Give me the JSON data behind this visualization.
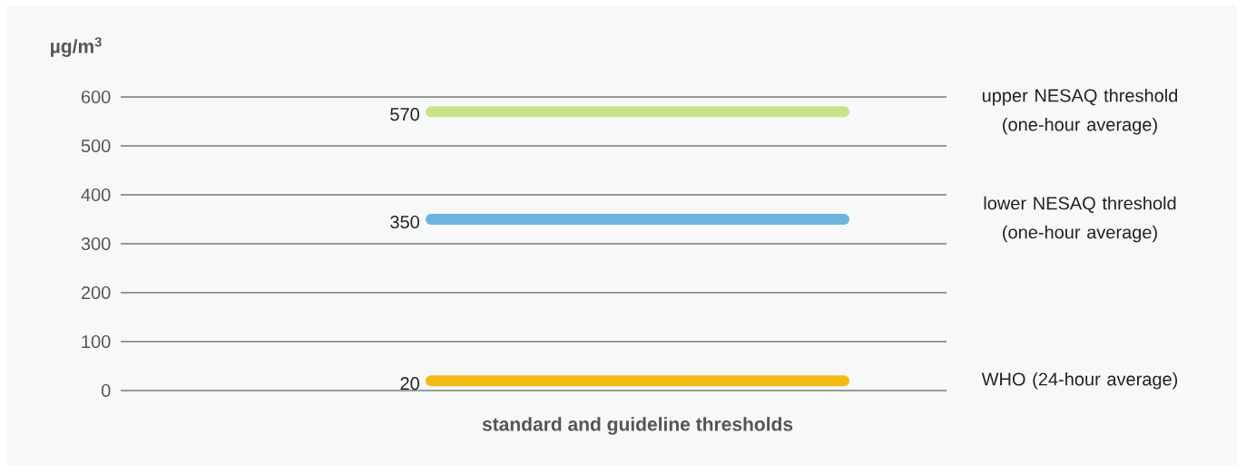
{
  "chart_data": {
    "type": "line",
    "xlabel": "standard and guideline thresholds",
    "ylabel": "µg/m$^{3}$",
    "categories": [
      null,
      null
    ],
    "series": [
      {
        "name": "upper NESAQ threshold (one-hour average)",
        "color": "#c8e38a",
        "values": [
          570,
          570
        ],
        "value_labels": [
          "570",
          null
        ]
      },
      {
        "name": "lower NESAQ threshold (one-hour average)",
        "color": "#6db5e0",
        "values": [
          350,
          350
        ],
        "value_labels": [
          "350",
          null
        ]
      },
      {
        "name": "WHO (24-hour average)",
        "color": "#f5b915",
        "values": [
          20,
          20
        ],
        "value_labels": [
          "20",
          null
        ]
      }
    ],
    "ylim": [
      0,
      600
    ],
    "yticks": [
      0,
      100,
      200,
      300,
      400,
      500,
      600
    ],
    "grid": "y"
  }
}
